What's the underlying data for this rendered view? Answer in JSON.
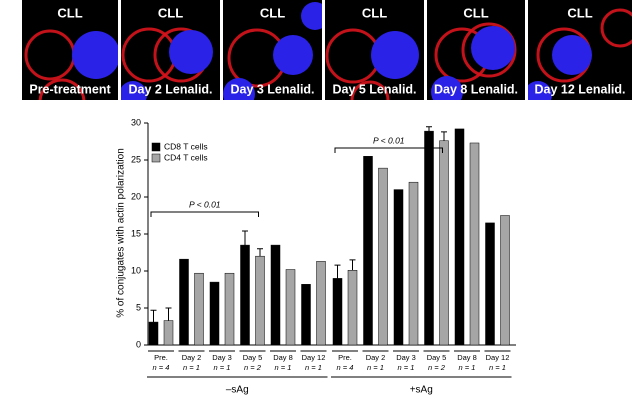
{
  "panels": [
    {
      "top": "CLL",
      "bottom": "Pre-treatment"
    },
    {
      "top": "CLL",
      "bottom": "Day 2 Lenalid."
    },
    {
      "top": "CLL",
      "bottom": "Day 3 Lenalid."
    },
    {
      "top": "CLL",
      "bottom": "Day 5 Lenalid."
    },
    {
      "top": "CLL",
      "bottom": "Day 8 Lenalid."
    },
    {
      "top": "CLL",
      "bottom": "Day 12 Lenalid."
    }
  ],
  "chart_data": {
    "type": "bar",
    "y_label": "% of conjugates with actin polarization",
    "categories": [
      "Pre.",
      "Day 2",
      "Day 3",
      "Day 5",
      "Day 8",
      "Day 12",
      "Pre.",
      "Day 2",
      "Day 3",
      "Day 5",
      "Day 8",
      "Day 12"
    ],
    "n_labels": [
      "n = 4",
      "n = 1",
      "n = 1",
      "n = 2",
      "n = 1",
      "n = 1",
      "n = 4",
      "n = 1",
      "n = 1",
      "n = 2",
      "n = 1",
      "n = 1"
    ],
    "groups": [
      "–sAg",
      "+sAg"
    ],
    "annotations": [
      "P < 0.01",
      "P < 0.01"
    ],
    "series": [
      {
        "name": "CD8 T cells",
        "color": "#000000",
        "values": [
          3.1,
          11.6,
          8.5,
          13.5,
          13.5,
          8.2,
          9.0,
          25.5,
          21.0,
          28.9,
          29.2,
          16.5
        ],
        "errors": [
          1.6,
          null,
          null,
          1.9,
          null,
          null,
          1.8,
          null,
          null,
          0.6,
          null,
          null
        ]
      },
      {
        "name": "CD4 T cells",
        "color": "#a6a6a6",
        "values": [
          3.3,
          9.7,
          9.7,
          12.0,
          10.2,
          11.3,
          10.1,
          23.9,
          22.0,
          27.6,
          27.3,
          17.5
        ],
        "errors": [
          1.7,
          null,
          null,
          1.0,
          null,
          null,
          1.4,
          null,
          null,
          1.2,
          null,
          null
        ]
      }
    ],
    "ylim": [
      0,
      30
    ],
    "yticks": [
      0,
      5,
      10,
      15,
      20,
      25,
      30
    ]
  }
}
